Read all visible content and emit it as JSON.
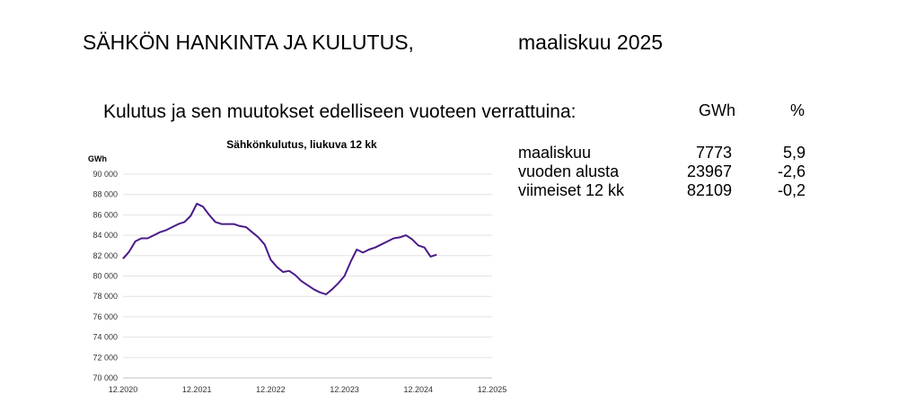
{
  "header": {
    "title": "SÄHKÖN HANKINTA JA KULUTUS,",
    "period": "maaliskuu 2025"
  },
  "summary": {
    "heading": "Kulutus ja sen muutokset edelliseen vuoteen verrattuina:",
    "col_gwh": "GWh",
    "col_pct": "%",
    "rows": [
      {
        "label": "maaliskuu",
        "gwh": "7773",
        "pct": "5,9"
      },
      {
        "label": "vuoden alusta",
        "gwh": "23967",
        "pct": "-2,6"
      },
      {
        "label": "viimeiset 12 kk",
        "gwh": "82109",
        "pct": "-0,2"
      }
    ]
  },
  "chart_data": {
    "type": "line",
    "title": "Sähkönkulutus, liukuva 12 kk",
    "ylabel": "GWh",
    "xlabel": "",
    "ylim": [
      70000,
      90000
    ],
    "yticks": [
      70000,
      72000,
      74000,
      76000,
      78000,
      80000,
      82000,
      84000,
      86000,
      88000,
      90000
    ],
    "ytick_labels": [
      "70 000",
      "72 000",
      "74 000",
      "76 000",
      "78 000",
      "80 000",
      "82 000",
      "84 000",
      "86 000",
      "88 000",
      "90 000"
    ],
    "xlim": [
      "2020-12",
      "2025-12"
    ],
    "xticks": [
      "2020-12",
      "2021-12",
      "2022-12",
      "2023-12",
      "2024-12",
      "2025-12"
    ],
    "xtick_labels": [
      "12.2020",
      "12.2021",
      "12.2022",
      "12.2023",
      "12.2024",
      "12.2025"
    ],
    "grid": "horizontal",
    "line_color": "#4b1a8a",
    "series": [
      {
        "x": [
          "2020-12",
          "2021-01",
          "2021-02",
          "2021-03",
          "2021-04",
          "2021-05",
          "2021-06",
          "2021-07",
          "2021-08",
          "2021-09",
          "2021-10",
          "2021-11",
          "2021-12",
          "2022-01",
          "2022-02",
          "2022-03",
          "2022-04",
          "2022-05",
          "2022-06",
          "2022-07",
          "2022-08",
          "2022-09",
          "2022-10",
          "2022-11",
          "2022-12",
          "2023-01",
          "2023-02",
          "2023-03",
          "2023-04",
          "2023-05",
          "2023-06",
          "2023-07",
          "2023-08",
          "2023-09",
          "2023-10",
          "2023-11",
          "2023-12",
          "2024-01",
          "2024-02",
          "2024-03",
          "2024-04",
          "2024-05",
          "2024-06",
          "2024-07",
          "2024-08",
          "2024-09",
          "2024-10",
          "2024-11",
          "2024-12",
          "2025-01",
          "2025-02",
          "2025-03"
        ],
        "values": [
          81700,
          82400,
          83400,
          83700,
          83700,
          84000,
          84300,
          84500,
          84800,
          85100,
          85300,
          85900,
          87100,
          86800,
          86000,
          85300,
          85100,
          85100,
          85100,
          84900,
          84800,
          84300,
          83800,
          83100,
          81600,
          80900,
          80400,
          80500,
          80100,
          79500,
          79100,
          78700,
          78400,
          78200,
          78700,
          79300,
          80000,
          81400,
          82600,
          82300,
          82600,
          82800,
          83100,
          83400,
          83700,
          83800,
          84000,
          83600,
          83000,
          82800,
          81900,
          82100
        ]
      }
    ]
  }
}
